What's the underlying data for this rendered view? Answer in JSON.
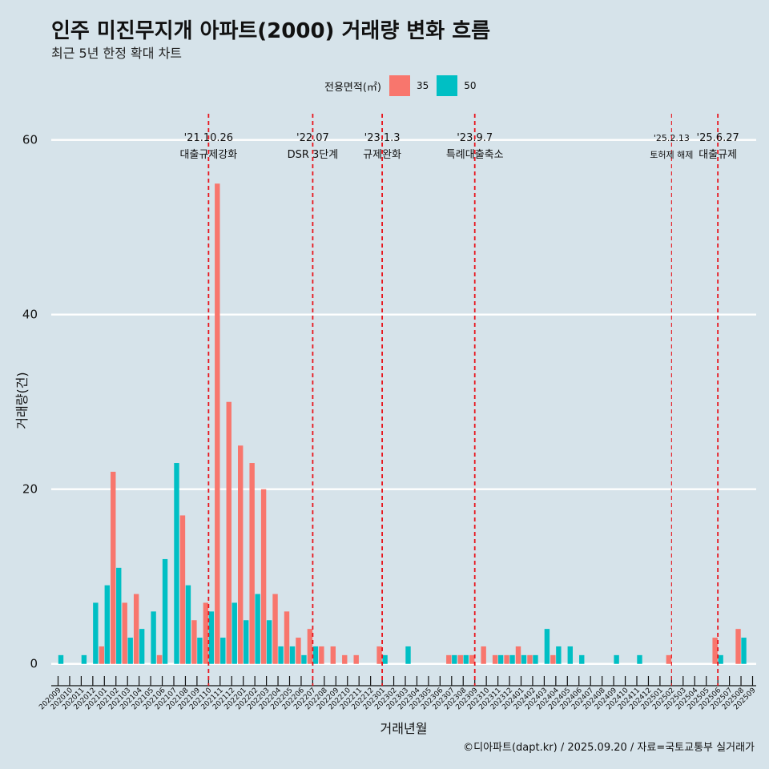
{
  "title": "인주 미진무지개 아파트(2000) 거래량 변화 흐름",
  "subtitle": "최근 5년 한정 확대 차트",
  "caption": "©디아파트(dapt.kr) / 2025.09.20 / 자료=국토교통부 실거래가",
  "colors": {
    "35": "#f8766d",
    "50": "#00bfc4",
    "background": "#d6e3ea",
    "grid": "#ffffff",
    "event_line": "#e8141c"
  },
  "chart_data": {
    "type": "bar",
    "xlabel": "거래년월",
    "ylabel": "거래량(건)",
    "ylim": [
      -2.5,
      63
    ],
    "yticks": [
      0,
      20,
      40,
      60
    ],
    "grid": "horizontal",
    "legend": {
      "title": "전용면적(㎡)",
      "position": "top"
    },
    "categories": [
      "202009",
      "202010",
      "202011",
      "202012",
      "202101",
      "202102",
      "202103",
      "202104",
      "202105",
      "202106",
      "202107",
      "202108",
      "202109",
      "202110",
      "202111",
      "202112",
      "202201",
      "202202",
      "202203",
      "202204",
      "202205",
      "202206",
      "202207",
      "202208",
      "202209",
      "202210",
      "202211",
      "202212",
      "202301",
      "202302",
      "202303",
      "202304",
      "202305",
      "202306",
      "202307",
      "202308",
      "202309",
      "202310",
      "202311",
      "202312",
      "202401",
      "202402",
      "202403",
      "202404",
      "202405",
      "202406",
      "202407",
      "202408",
      "202409",
      "202410",
      "202411",
      "202412",
      "202501",
      "202502",
      "202503",
      "202504",
      "202505",
      "202506",
      "202507",
      "202508",
      "202509"
    ],
    "series": [
      {
        "name": "35",
        "values": [
          0,
          0,
          0,
          0,
          2,
          22,
          7,
          8,
          0,
          1,
          0,
          17,
          5,
          7,
          55,
          30,
          25,
          23,
          20,
          8,
          6,
          3,
          4,
          2,
          2,
          1,
          1,
          0,
          2,
          0,
          0,
          0,
          0,
          0,
          1,
          1,
          1,
          2,
          1,
          1,
          2,
          1,
          0,
          1,
          0,
          0,
          0,
          0,
          0,
          0,
          0,
          0,
          0,
          1,
          0,
          0,
          0,
          3,
          0,
          4,
          0
        ]
      },
      {
        "name": "50",
        "values": [
          1,
          0,
          1,
          7,
          9,
          11,
          3,
          4,
          6,
          12,
          23,
          9,
          3,
          6,
          3,
          7,
          5,
          8,
          5,
          2,
          2,
          1,
          2,
          0,
          0,
          0,
          0,
          0,
          1,
          0,
          2,
          0,
          0,
          0,
          1,
          1,
          0,
          0,
          1,
          1,
          1,
          1,
          4,
          2,
          2,
          1,
          0,
          0,
          1,
          0,
          1,
          0,
          0,
          0,
          0,
          0,
          0,
          1,
          0,
          3,
          0
        ]
      }
    ],
    "events": [
      {
        "date_label": "'21.10.26",
        "label": "대출규제강화",
        "category": "202110"
      },
      {
        "date_label": "'22.07",
        "label": "DSR 3단계",
        "category": "202207"
      },
      {
        "date_label": "'23.1.3",
        "label": "규제완화",
        "category": "202301"
      },
      {
        "date_label": "'23.9.7",
        "label": "특례대출축소",
        "category": "202309"
      },
      {
        "date_label": "'25.2.13",
        "label": "토허제 해제",
        "category": "202502"
      },
      {
        "date_label": "'25.6.27",
        "label": "대출규제",
        "category": "202506"
      }
    ]
  }
}
